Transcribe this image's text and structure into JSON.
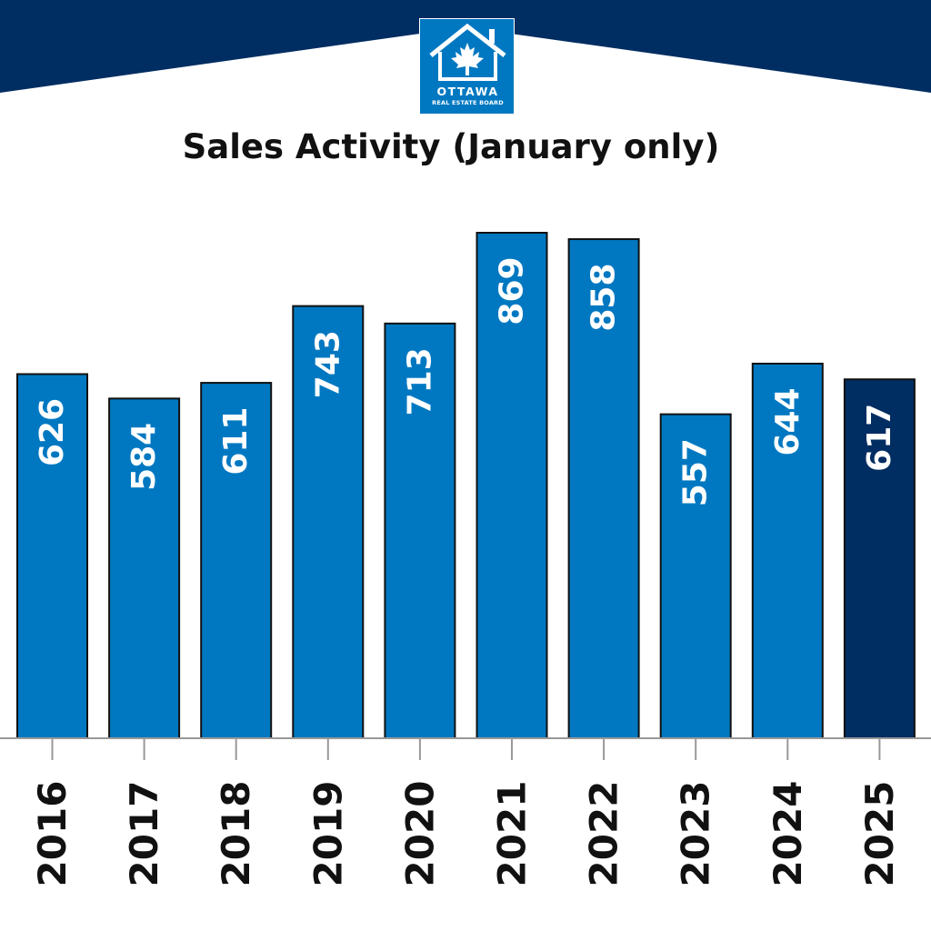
{
  "header": {
    "logo_line1": "OTTAWA",
    "logo_line2": "REAL ESTATE BOARD",
    "banner_color": "#002d62",
    "logo_color": "#0078c1"
  },
  "chart_data": {
    "type": "bar",
    "title": "Sales Activity (January only)",
    "xlabel": "",
    "ylabel": "",
    "categories": [
      "2016",
      "2017",
      "2018",
      "2019",
      "2020",
      "2021",
      "2022",
      "2023",
      "2024",
      "2025"
    ],
    "values": [
      626,
      584,
      611,
      743,
      713,
      869,
      858,
      557,
      644,
      617
    ],
    "ylim": [
      0,
      869
    ],
    "grid": false,
    "bar_color": "#0078c1",
    "highlight_color": "#002d62",
    "highlight_index": 9,
    "value_label_color": "#ffffff"
  }
}
